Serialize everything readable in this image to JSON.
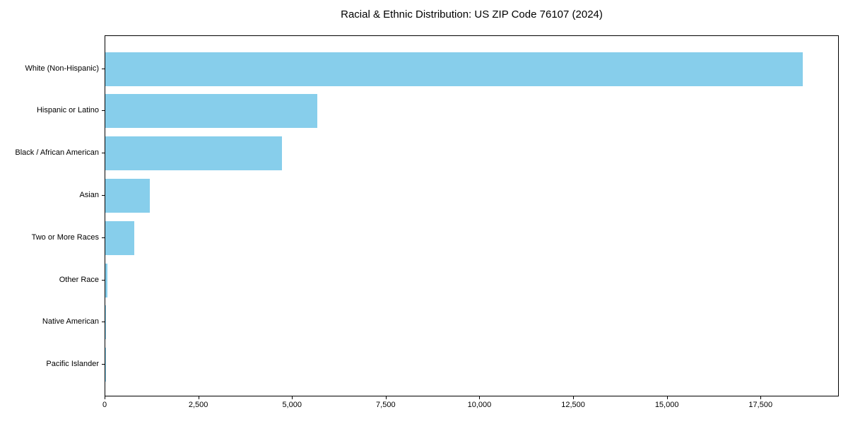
{
  "chart_data": {
    "type": "bar",
    "orientation": "horizontal",
    "title": "Racial & Ethnic Distribution: US ZIP Code 76107 (2024)",
    "xlabel": "",
    "ylabel": "",
    "categories": [
      "White (Non-Hispanic)",
      "Hispanic or Latino",
      "Black / African American",
      "Asian",
      "Two or More Races",
      "Other Race",
      "Native American",
      "Pacific Islander"
    ],
    "values": [
      18600,
      5650,
      4710,
      1195,
      780,
      60,
      25,
      10
    ],
    "xlim": [
      0,
      19550
    ],
    "x_ticks": [
      0,
      2500,
      5000,
      7500,
      10000,
      12500,
      15000,
      17500
    ],
    "x_tick_labels": [
      "0",
      "2,500",
      "5,000",
      "7,500",
      "10,000",
      "12,500",
      "15,000",
      "17,500"
    ],
    "grid": false,
    "legend": null,
    "bar_color": "#87CEEB",
    "axis_color": "#000000",
    "text_color": "#000000",
    "background_color": "#FFFFFF"
  }
}
